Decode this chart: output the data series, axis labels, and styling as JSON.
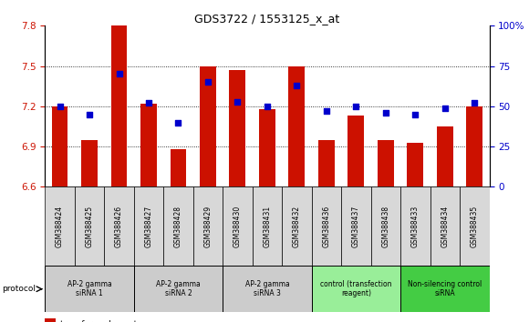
{
  "title": "GDS3722 / 1553125_x_at",
  "samples": [
    "GSM388424",
    "GSM388425",
    "GSM388426",
    "GSM388427",
    "GSM388428",
    "GSM388429",
    "GSM388430",
    "GSM388431",
    "GSM388432",
    "GSM388436",
    "GSM388437",
    "GSM388438",
    "GSM388433",
    "GSM388434",
    "GSM388435"
  ],
  "transformed_counts": [
    7.2,
    6.95,
    7.8,
    7.22,
    6.88,
    7.5,
    7.47,
    7.18,
    7.5,
    6.95,
    7.13,
    6.95,
    6.93,
    7.05,
    7.2
  ],
  "percentile_ranks": [
    50,
    45,
    70,
    52,
    40,
    65,
    53,
    50,
    63,
    47,
    50,
    46,
    45,
    49,
    52
  ],
  "groups": [
    {
      "label": "AP-2 gamma\nsiRNA 1",
      "indices": [
        0,
        1,
        2
      ],
      "color": "#cccccc"
    },
    {
      "label": "AP-2 gamma\nsiRNA 2",
      "indices": [
        3,
        4,
        5
      ],
      "color": "#cccccc"
    },
    {
      "label": "AP-2 gamma\nsiRNA 3",
      "indices": [
        6,
        7,
        8
      ],
      "color": "#cccccc"
    },
    {
      "label": "control (transfection\nreagent)",
      "indices": [
        9,
        10,
        11
      ],
      "color": "#99ee99"
    },
    {
      "label": "Non-silencing control\nsiRNA",
      "indices": [
        12,
        13,
        14
      ],
      "color": "#44cc44"
    }
  ],
  "bar_color": "#cc1100",
  "dot_color": "#0000cc",
  "ylim_left": [
    6.6,
    7.8
  ],
  "ylim_right": [
    0,
    100
  ],
  "yticks_left": [
    6.6,
    6.9,
    7.2,
    7.5,
    7.8
  ],
  "yticks_right": [
    0,
    25,
    50,
    75,
    100
  ],
  "grid_values": [
    6.9,
    7.2,
    7.5
  ],
  "bar_width": 0.55
}
